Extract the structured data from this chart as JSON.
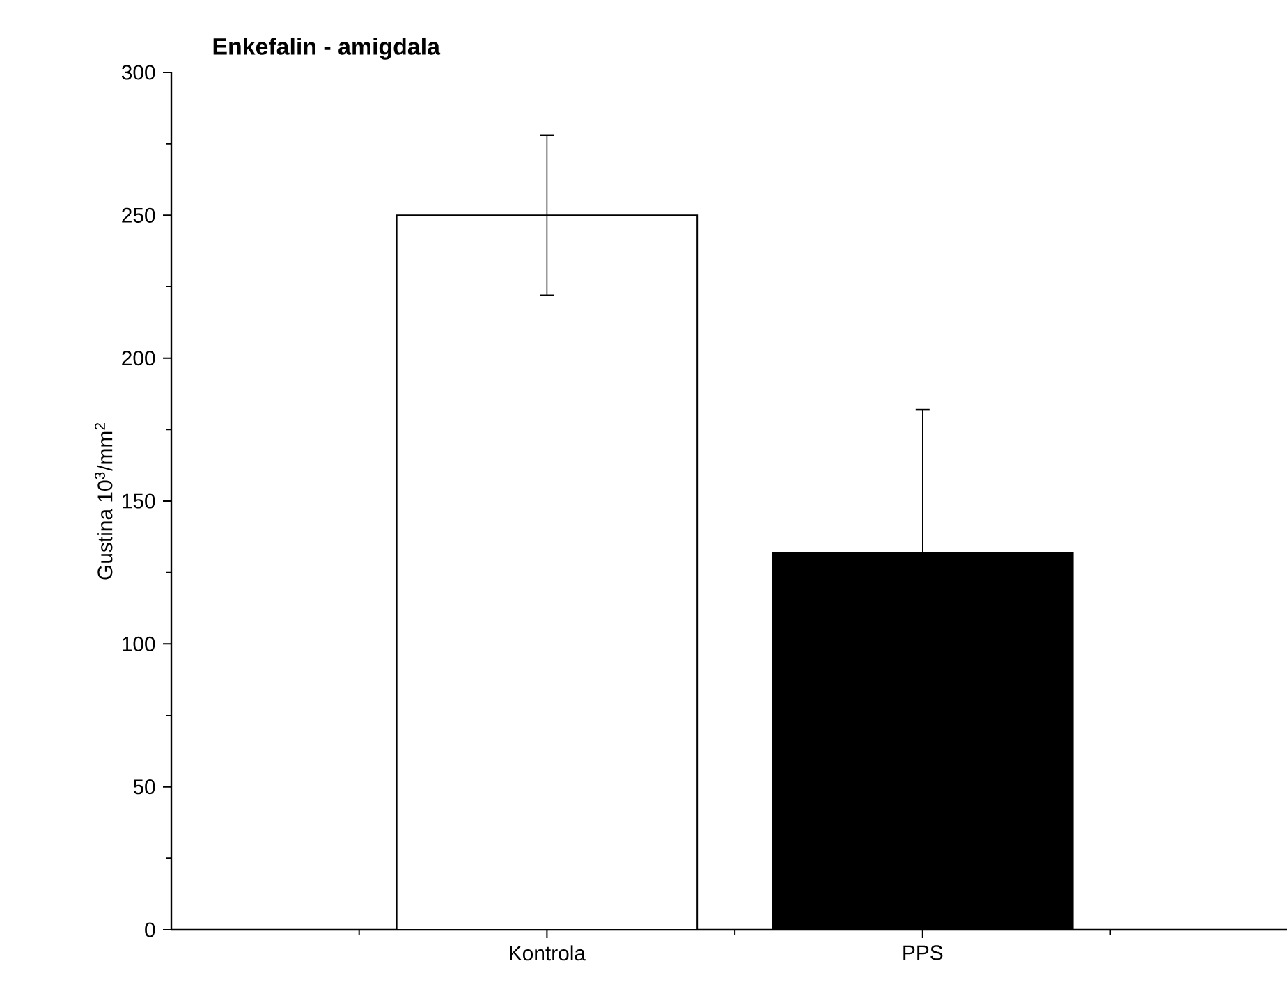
{
  "chart_data": {
    "type": "bar",
    "title": "Enkefalin - amigdala",
    "ylabel": "Gustina 10$^{3}$/mm$^{2}$",
    "categories": [
      "Kontrola",
      "PPS"
    ],
    "values": [
      250,
      132
    ],
    "errors": [
      28,
      50
    ],
    "colors": [
      "#ffffff",
      "#000000"
    ],
    "ylim": [
      0,
      300
    ],
    "yticks": [
      0,
      50,
      100,
      150,
      200,
      250,
      300
    ],
    "grid": false
  }
}
